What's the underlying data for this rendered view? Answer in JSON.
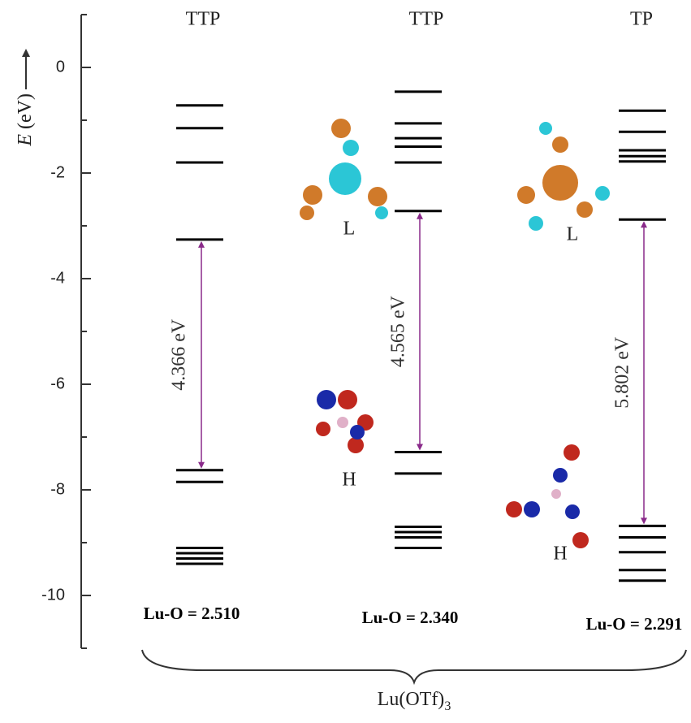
{
  "chart_data": {
    "type": "energy-levels",
    "y_label_symbol": "E",
    "y_label_unit": "(eV)",
    "ylim": [
      -11,
      1
    ],
    "yticks": [
      0,
      -2,
      -4,
      -6,
      -8,
      -10
    ],
    "yticks_minor": [
      1,
      -1,
      -3,
      -5,
      -7,
      -9,
      -11
    ],
    "columns": [
      {
        "label": "TTP",
        "bond_label": "Lu-O = 2.510",
        "unoccupied": [
          -0.72,
          -1.15,
          -1.8,
          -3.26
        ],
        "occupied": [
          -7.626,
          -7.85,
          -9.1,
          -9.2,
          -9.3,
          -9.4
        ],
        "gap": 4.366,
        "gap_label": "4.366 eV"
      },
      {
        "label": "TTP",
        "bond_label": "Lu-O = 2.340",
        "unoccupied": [
          -0.46,
          -1.06,
          -1.34,
          -1.5,
          -1.8,
          -2.72
        ],
        "occupied": [
          -7.285,
          -7.69,
          -8.7,
          -8.8,
          -8.9,
          -9.1
        ],
        "gap": 4.565,
        "gap_label": "4.565 eV",
        "lumo_label": "L",
        "homo_label": "H"
      },
      {
        "label": "TP",
        "bond_label": "Lu-O = 2.291",
        "unoccupied": [
          -0.82,
          -1.22,
          -1.57,
          -1.68,
          -1.78,
          -2.88
        ],
        "occupied": [
          -8.682,
          -8.9,
          -9.18,
          -9.52,
          -9.72
        ],
        "gap": 5.802,
        "gap_label": "5.802 eV",
        "lumo_label": "L",
        "homo_label": "H"
      }
    ],
    "group_label": "Lu(OTf)",
    "group_label_subscript": "3"
  }
}
